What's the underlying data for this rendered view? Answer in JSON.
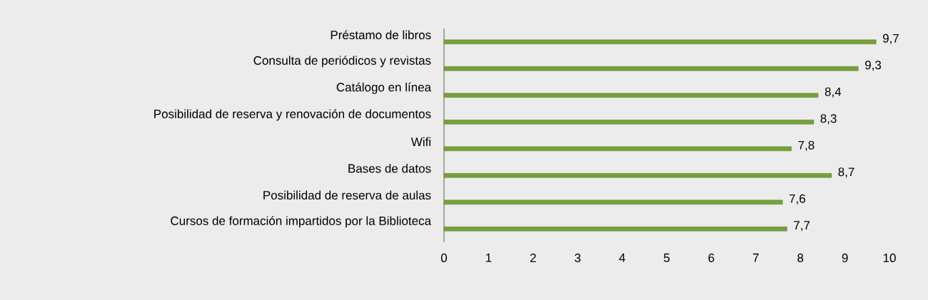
{
  "chart_data": {
    "type": "bar",
    "orientation": "horizontal",
    "categories": [
      "Préstamo de libros",
      "Consulta de periódicos y revistas",
      "Catálogo en línea",
      "Posibilidad de reserva y renovación de documentos",
      "Wifi",
      "Bases de datos",
      "Posibilidad de reserva de aulas",
      "Cursos de formación impartidos por la Biblioteca"
    ],
    "values": [
      9.7,
      9.3,
      8.4,
      8.3,
      7.8,
      8.7,
      7.6,
      7.7
    ],
    "value_labels": [
      "9,7",
      "9,3",
      "8,4",
      "8,3",
      "7,8",
      "8,7",
      "7,6",
      "7,7"
    ],
    "color": "#77a03a",
    "xlim": [
      0,
      10
    ],
    "xticks": [
      0,
      1,
      2,
      3,
      4,
      5,
      6,
      7,
      8,
      9,
      10
    ],
    "grid": false
  }
}
